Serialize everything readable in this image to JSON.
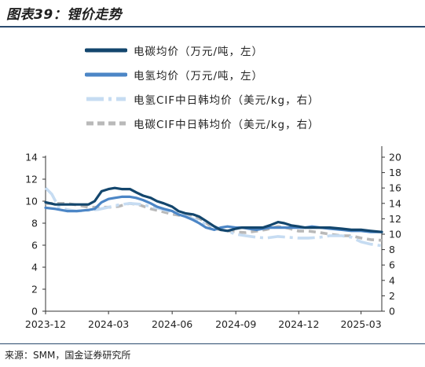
{
  "header": {
    "title": "图表39：锂价走势"
  },
  "footer": {
    "source": "来源：SMM，国金证券研究所"
  },
  "colors": {
    "carbonate_domestic": "#13466d",
    "hydroxide_domestic": "#4c86c6",
    "hydroxide_cif": "#c6dcf2",
    "carbonate_cif": "#b9b9b9",
    "axis": "#333333"
  },
  "chart_data": {
    "type": "line",
    "x_labels": [
      "2023-12",
      "2024-03",
      "2024-06",
      "2024-09",
      "2024-12",
      "2025-03"
    ],
    "x_range": [
      "2023-12-01",
      "2025-03-31"
    ],
    "y_left": {
      "range": [
        0,
        14
      ],
      "ticks": [
        0,
        2,
        4,
        6,
        8,
        10,
        12,
        14
      ]
    },
    "y_right": {
      "range": [
        0,
        20
      ],
      "ticks": [
        0,
        2,
        4,
        6,
        8,
        10,
        12,
        14,
        16,
        18,
        20
      ]
    },
    "grid": false,
    "legend_position": "top-left",
    "series": [
      {
        "name": "电碳均价（万元/吨，左）",
        "axis": "left",
        "style": "solid",
        "x": [
          "2023-12-01",
          "2023-12-15",
          "2024-01-01",
          "2024-01-15",
          "2024-02-01",
          "2024-02-10",
          "2024-02-20",
          "2024-03-01",
          "2024-03-10",
          "2024-03-20",
          "2024-04-01",
          "2024-04-10",
          "2024-04-20",
          "2024-05-01",
          "2024-05-10",
          "2024-05-20",
          "2024-06-01",
          "2024-06-10",
          "2024-06-20",
          "2024-07-01",
          "2024-07-10",
          "2024-07-20",
          "2024-08-01",
          "2024-08-10",
          "2024-08-20",
          "2024-09-01",
          "2024-09-10",
          "2024-09-20",
          "2024-10-01",
          "2024-10-10",
          "2024-10-20",
          "2024-11-01",
          "2024-11-10",
          "2024-11-20",
          "2024-12-01",
          "2024-12-10",
          "2024-12-20",
          "2025-01-01",
          "2025-01-15",
          "2025-02-01",
          "2025-02-15",
          "2025-03-01",
          "2025-03-15",
          "2025-03-31"
        ],
        "y": [
          9.9,
          9.7,
          9.7,
          9.7,
          9.7,
          10.0,
          10.9,
          11.1,
          11.2,
          11.1,
          11.1,
          10.8,
          10.5,
          10.3,
          10.0,
          9.8,
          9.5,
          9.1,
          8.9,
          8.8,
          8.6,
          8.2,
          7.7,
          7.4,
          7.3,
          7.5,
          7.6,
          7.6,
          7.6,
          7.6,
          7.8,
          8.1,
          8.0,
          7.8,
          7.7,
          7.6,
          7.6,
          7.6,
          7.6,
          7.5,
          7.4,
          7.4,
          7.3,
          7.2
        ]
      },
      {
        "name": "电氢均价（万元/吨，左）",
        "axis": "left",
        "style": "solid",
        "x": [
          "2023-12-01",
          "2023-12-15",
          "2024-01-01",
          "2024-01-15",
          "2024-02-01",
          "2024-02-10",
          "2024-02-20",
          "2024-03-01",
          "2024-03-10",
          "2024-03-20",
          "2024-04-01",
          "2024-04-10",
          "2024-04-20",
          "2024-05-01",
          "2024-05-10",
          "2024-05-20",
          "2024-06-01",
          "2024-06-10",
          "2024-06-20",
          "2024-07-01",
          "2024-07-10",
          "2024-07-20",
          "2024-08-01",
          "2024-08-10",
          "2024-08-20",
          "2024-09-01",
          "2024-09-10",
          "2024-09-20",
          "2024-10-01",
          "2024-10-10",
          "2024-10-20",
          "2024-11-01",
          "2024-11-10",
          "2024-11-20",
          "2024-12-01",
          "2024-12-10",
          "2024-12-20",
          "2025-01-01",
          "2025-01-15",
          "2025-02-01",
          "2025-02-15",
          "2025-03-01",
          "2025-03-15",
          "2025-03-31"
        ],
        "y": [
          9.4,
          9.3,
          9.1,
          9.1,
          9.2,
          9.3,
          9.9,
          10.2,
          10.3,
          10.4,
          10.4,
          10.3,
          10.1,
          9.8,
          9.5,
          9.3,
          9.1,
          8.8,
          8.6,
          8.3,
          8.0,
          7.6,
          7.4,
          7.6,
          7.7,
          7.6,
          7.6,
          7.5,
          7.4,
          7.5,
          7.6,
          7.6,
          7.6,
          7.6,
          7.6,
          7.6,
          7.7,
          7.6,
          7.5,
          7.4,
          7.3,
          7.3,
          7.2,
          7.2
        ]
      },
      {
        "name": "电氢CIF中日韩均价（美元/kg，右）",
        "axis": "right",
        "style": "dash-dot",
        "x": [
          "2023-12-01",
          "2023-12-10",
          "2023-12-20",
          "2024-01-01",
          "2024-01-15",
          "2024-02-01",
          "2024-02-15",
          "2024-03-01",
          "2024-03-15",
          "2024-04-01",
          "2024-04-15",
          "2024-05-01",
          "2024-05-15",
          "2024-06-01",
          "2024-06-15",
          "2024-07-01",
          "2024-07-15",
          "2024-08-01",
          "2024-08-15",
          "2024-09-01",
          "2024-09-15",
          "2024-10-01",
          "2024-10-15",
          "2024-11-01",
          "2024-11-15",
          "2024-12-01",
          "2024-12-15",
          "2025-01-01",
          "2025-01-15",
          "2025-02-01",
          "2025-02-15",
          "2025-03-01",
          "2025-03-15",
          "2025-03-31"
        ],
        "y": [
          16.0,
          15.2,
          13.5,
          13.2,
          13.0,
          13.1,
          13.2,
          13.5,
          13.8,
          14.0,
          13.9,
          13.6,
          13.3,
          12.9,
          12.5,
          12.0,
          11.5,
          11.0,
          10.5,
          10.0,
          9.8,
          9.6,
          9.5,
          9.7,
          9.6,
          9.5,
          9.5,
          9.6,
          9.8,
          9.8,
          9.6,
          9.0,
          8.7,
          8.5
        ]
      },
      {
        "name": "电碳CIF中日韩均价（美元/kg，右）",
        "axis": "right",
        "style": "dashed",
        "x": [
          "2023-12-01",
          "2023-12-15",
          "2024-01-01",
          "2024-01-15",
          "2024-02-01",
          "2024-02-15",
          "2024-03-01",
          "2024-03-15",
          "2024-04-01",
          "2024-04-15",
          "2024-05-01",
          "2024-05-15",
          "2024-06-01",
          "2024-06-15",
          "2024-07-01",
          "2024-07-15",
          "2024-08-01",
          "2024-08-15",
          "2024-09-01",
          "2024-09-15",
          "2024-10-01",
          "2024-10-15",
          "2024-11-01",
          "2024-11-15",
          "2024-12-01",
          "2024-12-15",
          "2025-01-01",
          "2025-01-15",
          "2025-02-01",
          "2025-02-15",
          "2025-03-01",
          "2025-03-15",
          "2025-03-31"
        ],
        "y": [
          14.0,
          14.0,
          14.0,
          13.8,
          13.5,
          13.5,
          13.5,
          13.6,
          14.0,
          13.8,
          13.3,
          13.0,
          12.6,
          12.4,
          12.5,
          11.8,
          10.7,
          10.5,
          10.3,
          10.2,
          10.4,
          10.6,
          11.0,
          10.8,
          10.4,
          10.4,
          10.2,
          10.0,
          9.8,
          9.8,
          9.5,
          9.3,
          9.2
        ]
      }
    ]
  }
}
